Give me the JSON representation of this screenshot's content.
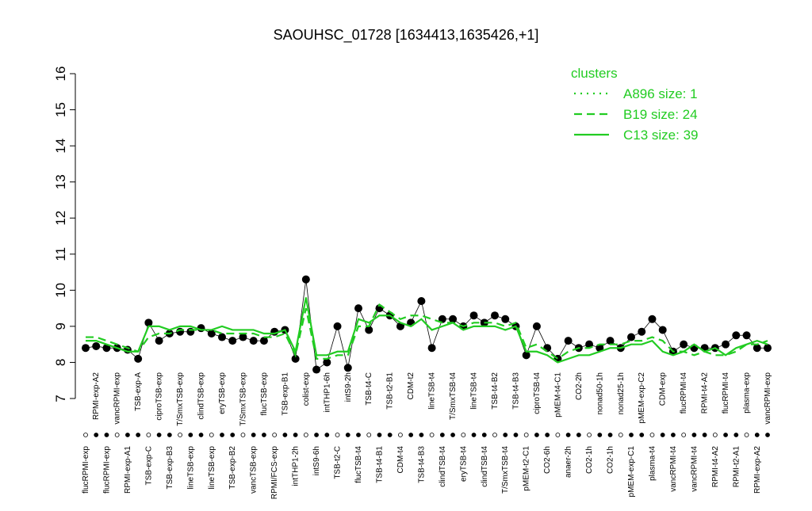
{
  "chart_data": {
    "type": "line",
    "title": "SAOUHSC_01728 [1634413,1635426,+1]",
    "categories": [
      "flucRPMI-exp",
      "RPMI-exp-A2",
      "flucRPMI-exp",
      "vancRPMI-exp",
      "RPMI-exp-A1",
      "TSB-exp-A",
      "TSB-exp-C",
      "ciproTSB-exp",
      "TSB-exp-B3",
      "T/SmxTSB-exp",
      "lineTSB-exp",
      "clindTSB-exp",
      "lineTSB-exp",
      "eryTSB-exp",
      "TSB-exp-B2",
      "T/SmxTSB-exp",
      "vancTSB-exp",
      "flucTSB-exp",
      "RPMI/FCS-exp",
      "TSB-exp-B1",
      "intTHP1-2h",
      "colist-exp",
      "intS9-6h",
      "intTHP1-6h",
      "TSB-t2-C",
      "intS9-2h",
      "flucTSB-t4",
      "TSB-t4-C",
      "TSB-t4-B1",
      "TSB-t2-B1",
      "CDM-t4",
      "CDM-t2",
      "TSB-t4-B3",
      "lineTSB-t4",
      "clindTSB-t4",
      "T/SmxTSB-t4",
      "eryTSB-t4",
      "lineTSB-t4",
      "clindTSB-t4",
      "TSB-t4-B2",
      "T/SmxTSB-t4",
      "TSB-t4-B3",
      "pMEM-t2-C1",
      "ciproTSB-t4",
      "CO2-6h",
      "pMEM-t4-C1",
      "anaer-2h",
      "CO2-2h",
      "CO2-1h",
      "nonad50-1h",
      "CO2-1h",
      "nonad25-1h",
      "pMEM-exp-C1",
      "pMEM-exp-C2",
      "plasma-t4",
      "CDM-exp",
      "vancRPMI-t4",
      "flucRPMI-t4",
      "vancRPMI-t4",
      "RPMI-t4-A2",
      "RPMI-t4-A2",
      "flucRPMI-t4",
      "RPMI-t2-A1",
      "plasma-exp",
      "RPMI-exp-A2",
      "vancRPMI-exp"
    ],
    "series": [
      {
        "name": "points",
        "color": "#000000",
        "values": [
          8.4,
          8.45,
          8.4,
          8.4,
          8.35,
          8.1,
          9.1,
          8.6,
          8.8,
          8.85,
          8.85,
          8.95,
          8.8,
          8.7,
          8.6,
          8.7,
          8.6,
          8.6,
          8.85,
          8.9,
          8.1,
          10.3,
          7.8,
          8.0,
          9.0,
          7.85,
          9.5,
          8.9,
          9.5,
          9.3,
          9.0,
          9.1,
          9.7,
          8.4,
          9.2,
          9.2,
          9.0,
          9.3,
          9.1,
          9.3,
          9.2,
          9.0,
          8.2,
          9.0,
          8.4,
          8.1,
          8.6,
          8.4,
          8.5,
          8.4,
          8.6,
          8.4,
          8.7,
          8.85,
          9.2,
          8.9,
          8.3,
          8.5,
          8.4,
          8.4,
          8.4,
          8.5,
          8.75,
          8.75,
          8.4,
          8.4
        ]
      },
      {
        "name": "B19 size: 24",
        "color": "#22cc22",
        "dash": "dashed",
        "values": [
          8.7,
          8.7,
          8.6,
          8.5,
          8.4,
          8.3,
          8.7,
          8.8,
          8.8,
          8.9,
          8.9,
          8.9,
          8.9,
          8.8,
          8.8,
          8.8,
          8.8,
          8.7,
          8.7,
          8.8,
          8.2,
          9.5,
          8.1,
          8.1,
          8.2,
          8.2,
          9.0,
          9.0,
          9.6,
          9.4,
          9.2,
          9.3,
          9.3,
          9.2,
          9.1,
          9.1,
          9.0,
          9.1,
          9.1,
          9.1,
          9.0,
          9.1,
          8.4,
          8.5,
          8.3,
          8.1,
          8.3,
          8.4,
          8.4,
          8.5,
          8.5,
          8.5,
          8.6,
          8.6,
          8.7,
          8.6,
          8.3,
          8.3,
          8.2,
          8.3,
          8.2,
          8.2,
          8.3,
          8.5,
          8.5,
          8.6
        ]
      },
      {
        "name": "C13 size: 39",
        "color": "#22cc22",
        "dash": "solid",
        "values": [
          8.6,
          8.6,
          8.5,
          8.4,
          8.3,
          8.3,
          9.0,
          9.0,
          8.9,
          9.0,
          9.0,
          8.9,
          8.9,
          9.0,
          8.9,
          8.9,
          8.9,
          8.8,
          8.8,
          8.9,
          8.3,
          9.8,
          8.2,
          8.2,
          8.3,
          8.3,
          9.2,
          9.1,
          9.3,
          9.3,
          9.1,
          9.0,
          9.2,
          8.9,
          9.0,
          9.1,
          8.9,
          9.0,
          9.0,
          9.0,
          8.9,
          9.0,
          8.3,
          8.3,
          8.2,
          8.0,
          8.1,
          8.2,
          8.2,
          8.3,
          8.4,
          8.4,
          8.5,
          8.5,
          8.6,
          8.3,
          8.2,
          8.3,
          8.5,
          8.3,
          8.4,
          8.2,
          8.4,
          8.5,
          8.6,
          8.5
        ]
      }
    ],
    "legend": {
      "title": "clusters",
      "items": [
        {
          "label": "A896 size: 1",
          "dash": "dotted"
        },
        {
          "label": "B19 size: 24",
          "dash": "dashed"
        },
        {
          "label": "C13 size: 39",
          "dash": "solid"
        }
      ],
      "color": "#22cc22"
    },
    "ylim": [
      7,
      16
    ],
    "yticks": [
      7,
      8,
      9,
      10,
      11,
      12,
      13,
      14,
      15,
      16
    ]
  }
}
